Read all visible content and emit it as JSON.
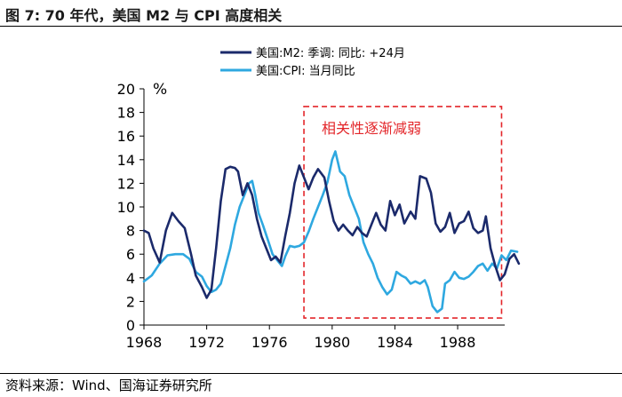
{
  "header": {
    "title": "图 7:  70 年代，美国 M2 与 CPI 高度相关"
  },
  "footer": {
    "source": "资料来源：Wind、国海证券研究所"
  },
  "colors": {
    "m2": "#1b2a6b",
    "cpi": "#2ea8e0",
    "box": "#e3262a",
    "axis": "#000000"
  },
  "chart_data": {
    "type": "line",
    "title": "",
    "xlabel": "",
    "ylabel": "%",
    "xlim": [
      1968,
      1991
    ],
    "ylim": [
      0,
      20
    ],
    "xticks": [
      1968,
      1972,
      1976,
      1980,
      1984,
      1988
    ],
    "yticks": [
      0,
      2,
      4,
      6,
      8,
      10,
      12,
      14,
      16,
      18,
      20
    ],
    "legend": {
      "position": "top-right"
    },
    "annotation": {
      "text": "相关性逐渐减弱",
      "x_range": [
        1978.2,
        1990.8
      ],
      "y_range": [
        0.6,
        18.5
      ]
    },
    "series": [
      {
        "name": "美国:M2: 季调: 同比: +24月",
        "color": "#1b2a6b",
        "points": [
          [
            1968,
            8.0
          ],
          [
            1968.3,
            7.8
          ],
          [
            1968.6,
            6.5
          ],
          [
            1969,
            5.3
          ],
          [
            1969.4,
            8.0
          ],
          [
            1969.8,
            9.5
          ],
          [
            1970.2,
            8.8
          ],
          [
            1970.6,
            8.2
          ],
          [
            1971,
            6.0
          ],
          [
            1971.3,
            4.2
          ],
          [
            1971.7,
            3.2
          ],
          [
            1972,
            2.3
          ],
          [
            1972.3,
            3.0
          ],
          [
            1972.6,
            6.5
          ],
          [
            1972.9,
            10.5
          ],
          [
            1973.2,
            13.2
          ],
          [
            1973.5,
            13.4
          ],
          [
            1973.8,
            13.3
          ],
          [
            1974,
            13.0
          ],
          [
            1974.3,
            11.0
          ],
          [
            1974.6,
            12.0
          ],
          [
            1974.9,
            11.0
          ],
          [
            1975.2,
            9.0
          ],
          [
            1975.5,
            7.5
          ],
          [
            1975.8,
            6.5
          ],
          [
            1976.1,
            5.5
          ],
          [
            1976.4,
            5.8
          ],
          [
            1976.7,
            5.3
          ],
          [
            1977,
            7.5
          ],
          [
            1977.3,
            9.5
          ],
          [
            1977.6,
            12.0
          ],
          [
            1977.9,
            13.5
          ],
          [
            1978.2,
            12.5
          ],
          [
            1978.5,
            11.5
          ],
          [
            1978.8,
            12.5
          ],
          [
            1979.1,
            13.2
          ],
          [
            1979.5,
            12.5
          ],
          [
            1979.8,
            10.5
          ],
          [
            1980.1,
            8.8
          ],
          [
            1980.4,
            8.0
          ],
          [
            1980.7,
            8.5
          ],
          [
            1981,
            8.0
          ],
          [
            1981.3,
            7.6
          ],
          [
            1981.6,
            8.3
          ],
          [
            1981.9,
            7.8
          ],
          [
            1982.2,
            7.5
          ],
          [
            1982.5,
            8.5
          ],
          [
            1982.8,
            9.5
          ],
          [
            1983.1,
            8.5
          ],
          [
            1983.4,
            8.0
          ],
          [
            1983.7,
            10.5
          ],
          [
            1984,
            9.3
          ],
          [
            1984.3,
            10.2
          ],
          [
            1984.6,
            8.6
          ],
          [
            1985,
            9.6
          ],
          [
            1985.3,
            9.0
          ],
          [
            1985.6,
            12.6
          ],
          [
            1986,
            12.4
          ],
          [
            1986.3,
            11.2
          ],
          [
            1986.6,
            8.6
          ],
          [
            1986.9,
            7.9
          ],
          [
            1987.2,
            8.3
          ],
          [
            1987.5,
            9.5
          ],
          [
            1987.8,
            7.8
          ],
          [
            1988.1,
            8.6
          ],
          [
            1988.4,
            8.8
          ],
          [
            1988.7,
            9.6
          ],
          [
            1989,
            8.2
          ],
          [
            1989.3,
            7.8
          ],
          [
            1989.6,
            8.0
          ],
          [
            1989.8,
            9.2
          ],
          [
            1990.1,
            6.5
          ],
          [
            1990.4,
            5.0
          ],
          [
            1990.7,
            3.8
          ],
          [
            1991.0,
            4.3
          ],
          [
            1991.3,
            5.6
          ],
          [
            1991.6,
            6.0
          ],
          [
            1991.9,
            5.2
          ]
        ]
      },
      {
        "name": "美国:CPI: 当月同比",
        "color": "#2ea8e0",
        "points": [
          [
            1968,
            3.7
          ],
          [
            1968.5,
            4.2
          ],
          [
            1969,
            5.2
          ],
          [
            1969.5,
            5.9
          ],
          [
            1970,
            6.0
          ],
          [
            1970.5,
            6.0
          ],
          [
            1970.9,
            5.6
          ],
          [
            1971.3,
            4.5
          ],
          [
            1971.7,
            4.1
          ],
          [
            1972,
            3.3
          ],
          [
            1972.3,
            2.8
          ],
          [
            1972.6,
            3.0
          ],
          [
            1972.9,
            3.5
          ],
          [
            1973.2,
            5.0
          ],
          [
            1973.5,
            6.5
          ],
          [
            1973.8,
            8.5
          ],
          [
            1974.1,
            10.0
          ],
          [
            1974.4,
            11.0
          ],
          [
            1974.7,
            12.0
          ],
          [
            1974.9,
            12.2
          ],
          [
            1975.1,
            11.0
          ],
          [
            1975.3,
            9.5
          ],
          [
            1975.6,
            8.4
          ],
          [
            1975.9,
            7.2
          ],
          [
            1976.2,
            6.0
          ],
          [
            1976.5,
            5.5
          ],
          [
            1976.8,
            5.0
          ],
          [
            1977,
            5.8
          ],
          [
            1977.3,
            6.7
          ],
          [
            1977.6,
            6.6
          ],
          [
            1977.9,
            6.7
          ],
          [
            1978.2,
            7.0
          ],
          [
            1978.5,
            7.9
          ],
          [
            1978.8,
            9.0
          ],
          [
            1979.1,
            10.0
          ],
          [
            1979.4,
            11.0
          ],
          [
            1979.7,
            12.1
          ],
          [
            1980,
            14.0
          ],
          [
            1980.2,
            14.7
          ],
          [
            1980.5,
            13.0
          ],
          [
            1980.8,
            12.6
          ],
          [
            1981.1,
            11.0
          ],
          [
            1981.4,
            10.0
          ],
          [
            1981.7,
            9.0
          ],
          [
            1982,
            7.0
          ],
          [
            1982.3,
            6.0
          ],
          [
            1982.6,
            5.2
          ],
          [
            1982.9,
            4.0
          ],
          [
            1983.2,
            3.2
          ],
          [
            1983.5,
            2.6
          ],
          [
            1983.8,
            3.0
          ],
          [
            1984.1,
            4.5
          ],
          [
            1984.4,
            4.2
          ],
          [
            1984.7,
            4.0
          ],
          [
            1985,
            3.5
          ],
          [
            1985.3,
            3.7
          ],
          [
            1985.6,
            3.5
          ],
          [
            1985.9,
            3.8
          ],
          [
            1986.1,
            3.2
          ],
          [
            1986.4,
            1.6
          ],
          [
            1986.7,
            1.1
          ],
          [
            1987,
            1.4
          ],
          [
            1987.2,
            3.5
          ],
          [
            1987.5,
            3.8
          ],
          [
            1987.8,
            4.5
          ],
          [
            1988.1,
            4.0
          ],
          [
            1988.4,
            3.9
          ],
          [
            1988.7,
            4.1
          ],
          [
            1989,
            4.5
          ],
          [
            1989.3,
            5.0
          ],
          [
            1989.6,
            5.2
          ],
          [
            1989.9,
            4.6
          ],
          [
            1990.2,
            5.2
          ],
          [
            1990.5,
            4.8
          ],
          [
            1990.8,
            5.9
          ],
          [
            1991.1,
            5.5
          ],
          [
            1991.4,
            6.3
          ],
          [
            1991.8,
            6.2
          ]
        ]
      }
    ]
  }
}
